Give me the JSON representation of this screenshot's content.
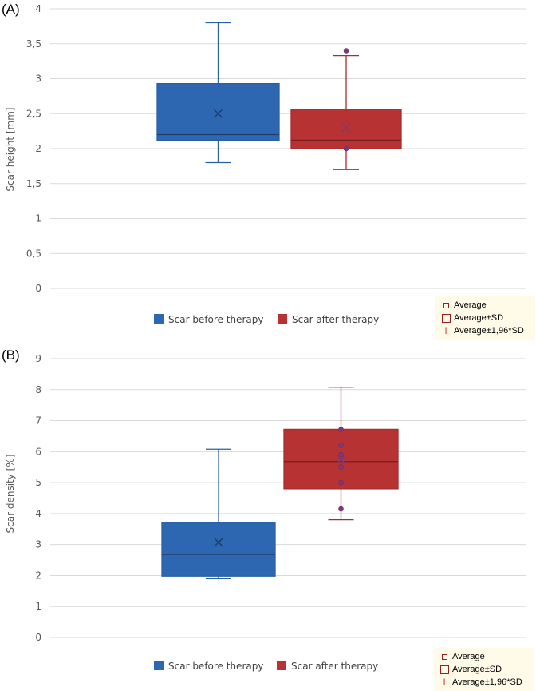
{
  "panels": {
    "a_label": "(A)",
    "b_label": "(B)"
  },
  "notes": {
    "average": "Average",
    "average_sd": "Average±SD",
    "average_196sd": "Average±1,96*SD"
  },
  "colors": {
    "before": "#2e67b1",
    "after": "#b73232",
    "grid": "#d9d9d9"
  },
  "chart_data": [
    {
      "type": "box",
      "ylabel": "Scar height [mm]",
      "ylim": [
        0,
        4
      ],
      "yticks": [
        "0",
        "0,5",
        "1",
        "1,5",
        "2",
        "2,5",
        "3",
        "3,5",
        "4"
      ],
      "grid": true,
      "legend_position": "bottom",
      "series": [
        {
          "name": "Scar before therapy",
          "min": 1.8,
          "q1": 2.12,
          "median": 2.2,
          "q3": 2.93,
          "max": 3.8,
          "mean": 2.5,
          "points": []
        },
        {
          "name": "Scar after therapy",
          "min": 1.7,
          "q1": 2.0,
          "median": 2.12,
          "q3": 2.56,
          "max": 3.33,
          "mean": 2.3,
          "points": [
            3.4,
            2.0
          ]
        }
      ]
    },
    {
      "type": "box",
      "ylabel": "Scar density [%]",
      "ylim": [
        0,
        9
      ],
      "yticks": [
        "0",
        "1",
        "2",
        "3",
        "4",
        "5",
        "6",
        "7",
        "8",
        "9"
      ],
      "grid": true,
      "legend_position": "bottom",
      "series": [
        {
          "name": "Scar before therapy",
          "min": 1.9,
          "q1": 1.98,
          "median": 2.68,
          "q3": 3.72,
          "max": 6.08,
          "mean": 3.07,
          "points": []
        },
        {
          "name": "Scar after therapy",
          "min": 3.8,
          "q1": 4.8,
          "median": 5.68,
          "q3": 6.72,
          "max": 8.08,
          "mean": 5.75,
          "points": [
            6.72,
            6.2,
            5.9,
            5.5,
            5.0,
            4.15
          ]
        }
      ]
    }
  ]
}
